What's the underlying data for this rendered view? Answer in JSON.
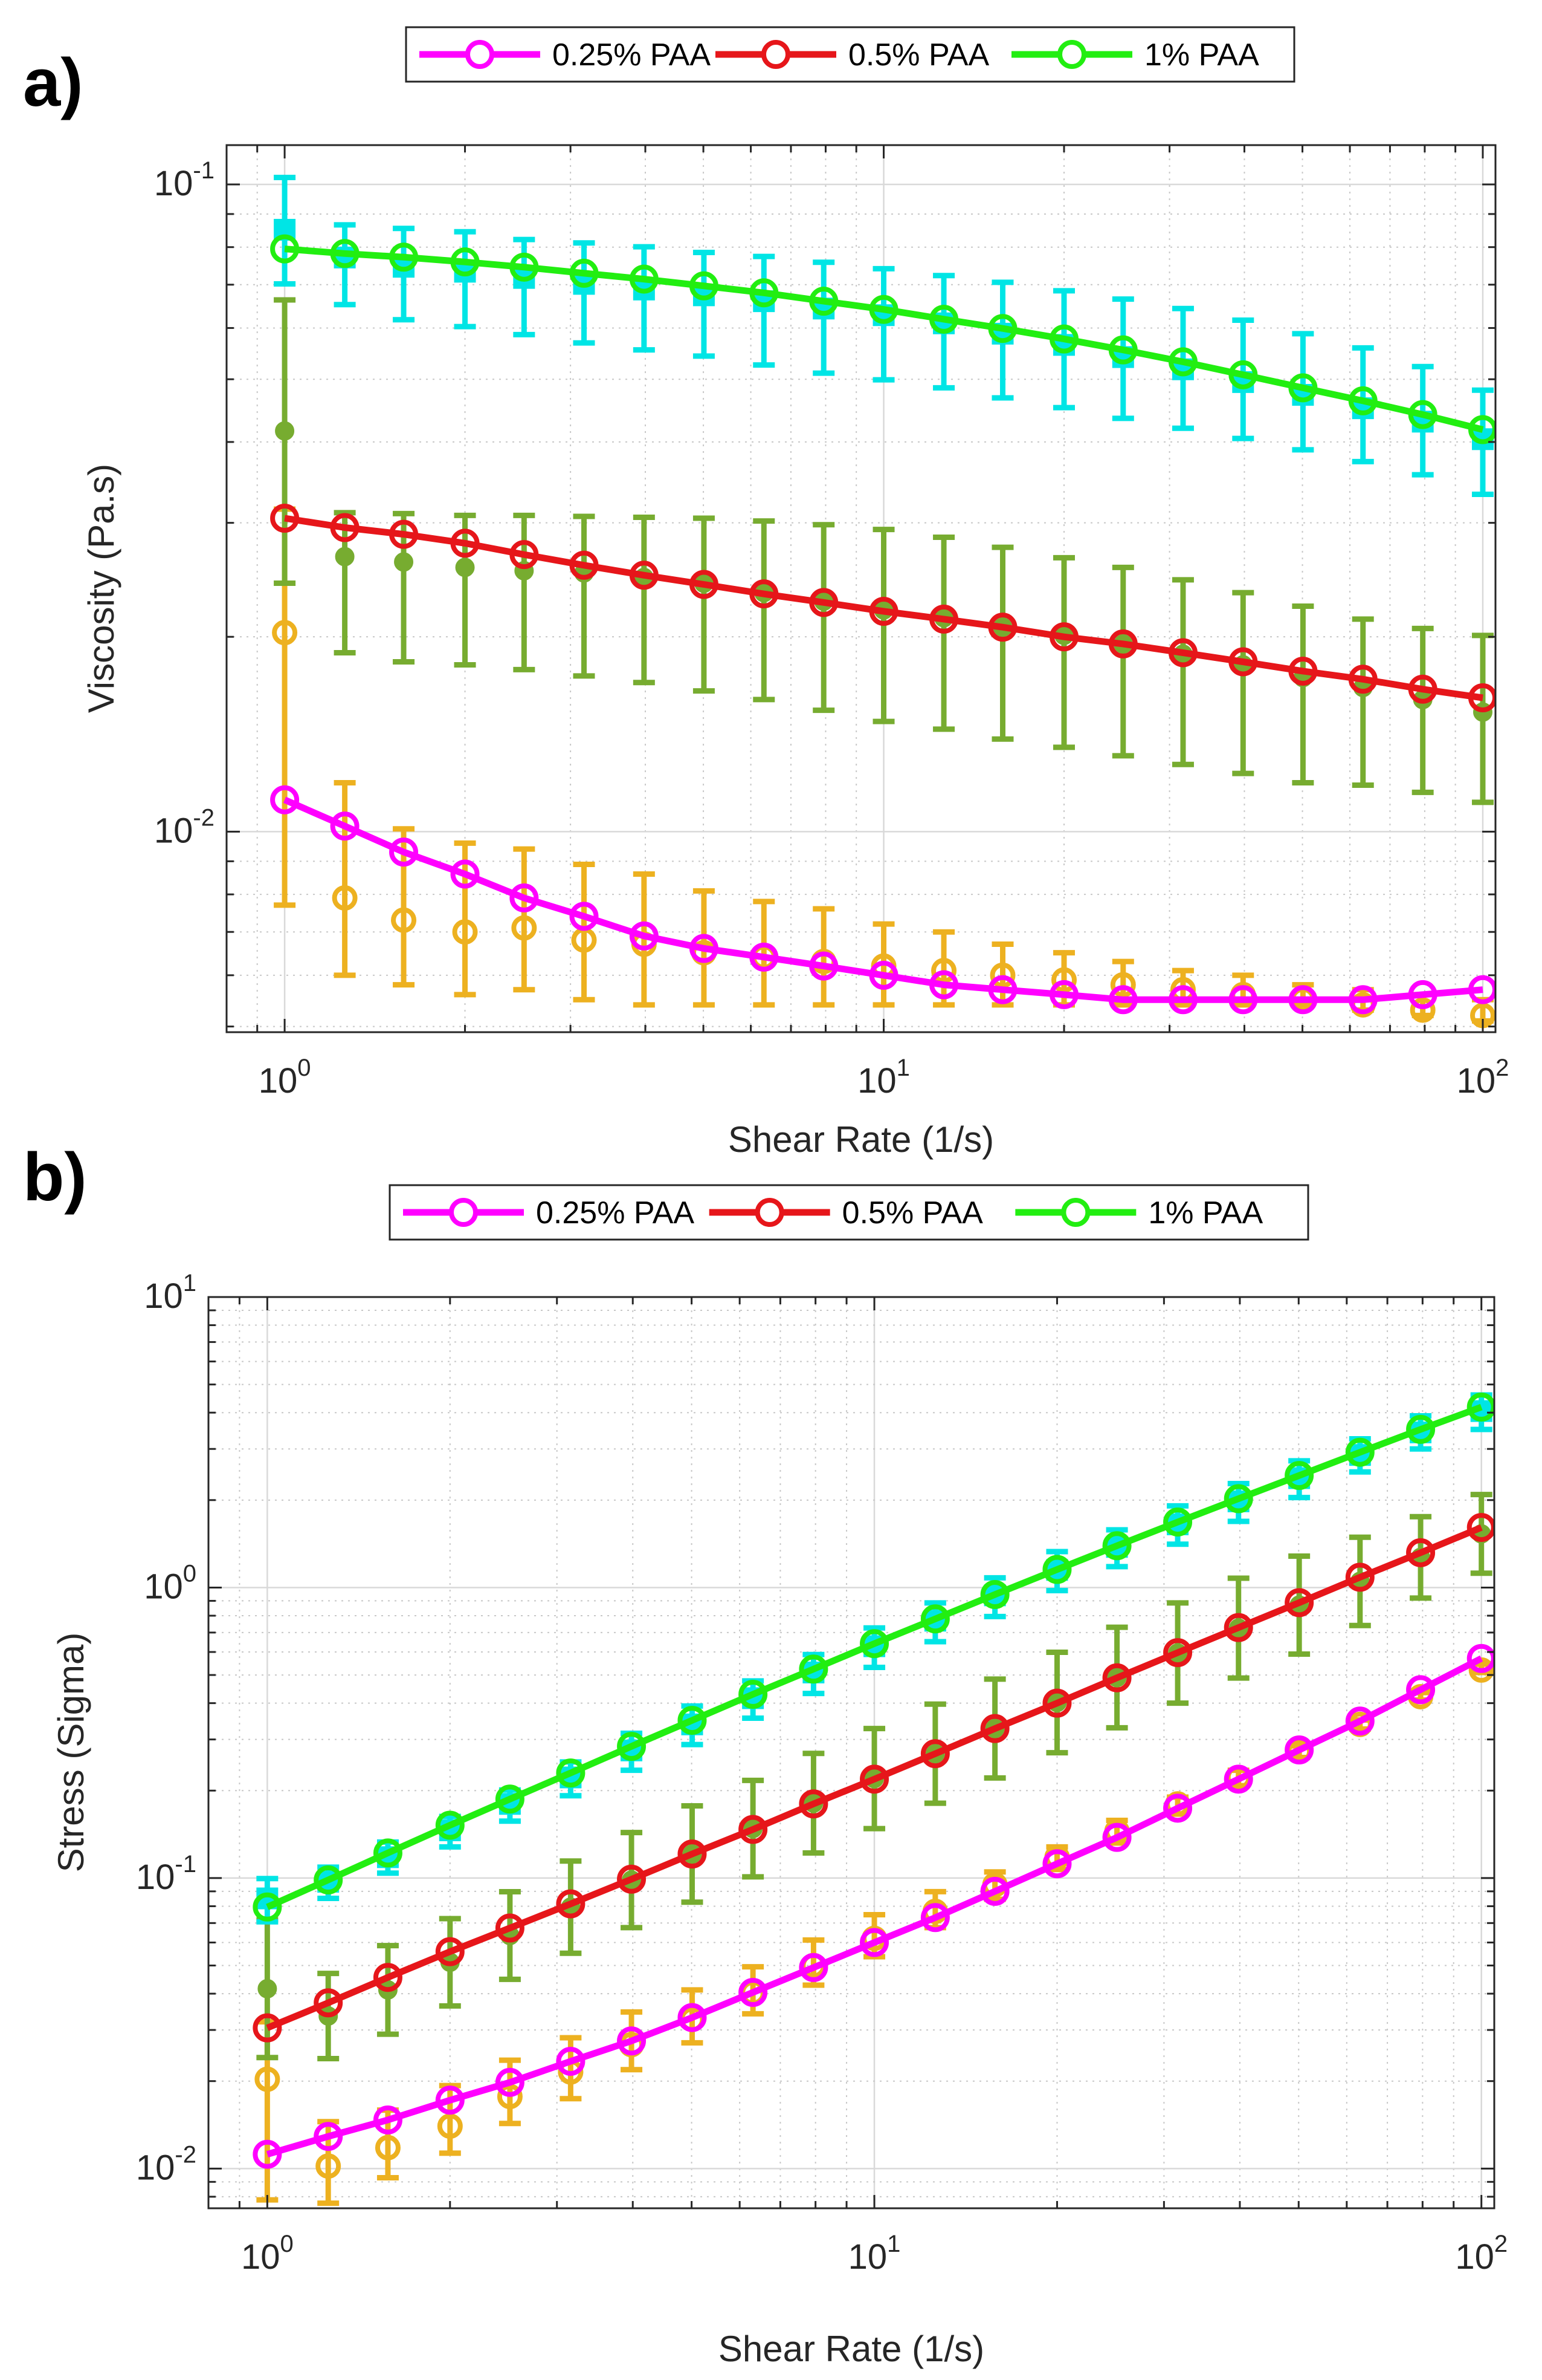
{
  "figure_labels": [
    "a)",
    "b)"
  ],
  "chart_data": [
    {
      "type": "line",
      "panel": "a)",
      "title": "",
      "xlabel": "Shear Rate (1/s)",
      "ylabel": "Viscosity (Pa.s)",
      "xscale": "log",
      "yscale": "log",
      "xlim": [
        0.8,
        105
      ],
      "ylim": [
        0.0049,
        0.115
      ],
      "grid": true,
      "legend_position": "top-center, outside",
      "x_ticks": [
        {
          "base": "10",
          "exp": "0",
          "value": 1
        },
        {
          "base": "10",
          "exp": "1",
          "value": 10
        },
        {
          "base": "10",
          "exp": "2",
          "value": 100
        }
      ],
      "y_ticks": [
        {
          "base": "10",
          "exp": "-2",
          "value": 0.01
        },
        {
          "base": "10",
          "exp": "-1",
          "value": 0.1
        }
      ],
      "x": [
        1,
        1.26,
        1.58,
        2,
        2.51,
        3.16,
        3.98,
        5.01,
        6.31,
        7.94,
        10,
        12.6,
        15.8,
        20,
        25.1,
        31.6,
        39.8,
        50.1,
        63.1,
        79.4,
        100
      ],
      "series": [
        {
          "name": "0.25% PAA",
          "color": "#ff00ff",
          "marker": "circle",
          "line": true,
          "values": [
            0.0112,
            0.0102,
            0.0093,
            0.0086,
            0.0079,
            0.0074,
            0.0069,
            0.0066,
            0.0064,
            0.0062,
            0.006,
            0.0058,
            0.0057,
            0.0056,
            0.0055,
            0.0055,
            0.0055,
            0.0055,
            0.0055,
            0.0056,
            0.0057
          ]
        },
        {
          "name": "0.5% PAA",
          "color": "#e6161a",
          "marker": "circle",
          "line": true,
          "values": [
            0.0305,
            0.0295,
            0.0288,
            0.0279,
            0.0268,
            0.0258,
            0.0249,
            0.0241,
            0.0233,
            0.0226,
            0.0219,
            0.0213,
            0.0207,
            0.02,
            0.0195,
            0.0189,
            0.0183,
            0.0177,
            0.0172,
            0.0166,
            0.0161
          ]
        },
        {
          "name": "1% PAA",
          "color": "#22ee11",
          "marker": "circle",
          "line": true,
          "values": [
            0.0795,
            0.0782,
            0.0772,
            0.0759,
            0.0745,
            0.0729,
            0.0714,
            0.0697,
            0.068,
            0.066,
            0.0641,
            0.0619,
            0.0599,
            0.0577,
            0.0555,
            0.0532,
            0.0508,
            0.0485,
            0.0463,
            0.0441,
            0.0418
          ]
        }
      ],
      "errorbar_series": [
        {
          "of": "0.25% PAA",
          "color": "#edb120",
          "marker": "circle",
          "values": [
            0.0203,
            0.0079,
            0.0073,
            0.007,
            0.0071,
            0.0068,
            0.0067,
            0.0065,
            0.0064,
            0.0063,
            0.0062,
            0.0061,
            0.006,
            0.0059,
            0.0058,
            0.0057,
            0.0056,
            0.0055,
            0.0054,
            0.0053,
            0.0052
          ],
          "lower": [
            0.0077,
            0.006,
            0.0058,
            0.0056,
            0.0057,
            0.0055,
            0.0054,
            0.0054,
            0.0054,
            0.0054,
            0.0054,
            0.0054,
            0.0054,
            0.0054,
            0.0054,
            0.0054,
            0.0054,
            0.0054,
            0.0053,
            0.0052,
            0.0051
          ],
          "upper": [
            0.0315,
            0.0119,
            0.0101,
            0.0096,
            0.0094,
            0.0089,
            0.0086,
            0.0081,
            0.0078,
            0.0076,
            0.0072,
            0.007,
            0.0067,
            0.0065,
            0.0063,
            0.0061,
            0.006,
            0.0058,
            0.0057,
            0.0056,
            0.0055
          ]
        },
        {
          "of": "0.5% PAA",
          "color": "#77ac30",
          "marker": "filled-circle",
          "values": [
            0.0416,
            0.0266,
            0.0261,
            0.0256,
            0.0253,
            0.0251,
            0.0247,
            0.0242,
            0.0234,
            0.0227,
            0.022,
            0.0214,
            0.0207,
            0.0201,
            0.0195,
            0.0188,
            0.0181,
            0.0173,
            0.0167,
            0.016,
            0.0153
          ],
          "lower": [
            0.0242,
            0.0189,
            0.0183,
            0.0181,
            0.0178,
            0.0174,
            0.017,
            0.0165,
            0.016,
            0.0154,
            0.0148,
            0.0144,
            0.0139,
            0.0135,
            0.0131,
            0.0127,
            0.0123,
            0.0119,
            0.0118,
            0.0115,
            0.0111
          ],
          "upper": [
            0.0663,
            0.0311,
            0.031,
            0.0308,
            0.0308,
            0.0307,
            0.0306,
            0.0305,
            0.0302,
            0.0298,
            0.0293,
            0.0285,
            0.0275,
            0.0265,
            0.0256,
            0.0245,
            0.0234,
            0.0223,
            0.0213,
            0.0206,
            0.0201
          ]
        },
        {
          "of": "1% PAA",
          "color": "#00e5e5",
          "marker": "filled-square",
          "values": [
            0.0851,
            0.0771,
            0.0746,
            0.0733,
            0.0717,
            0.0702,
            0.0688,
            0.0674,
            0.066,
            0.0643,
            0.0628,
            0.061,
            0.0588,
            0.0565,
            0.0541,
            0.0518,
            0.0495,
            0.0473,
            0.0451,
            0.043,
            0.0404
          ],
          "lower": [
            0.0702,
            0.0652,
            0.0618,
            0.0603,
            0.0586,
            0.0569,
            0.0555,
            0.0543,
            0.0526,
            0.0511,
            0.0499,
            0.0485,
            0.0468,
            0.0452,
            0.0435,
            0.042,
            0.0405,
            0.0389,
            0.0373,
            0.0356,
            0.0332
          ],
          "upper": [
            0.1025,
            0.0866,
            0.0855,
            0.0845,
            0.0822,
            0.0812,
            0.0801,
            0.0785,
            0.0774,
            0.0758,
            0.0741,
            0.0723,
            0.0706,
            0.0685,
            0.0665,
            0.0643,
            0.0617,
            0.0588,
            0.0559,
            0.0523,
            0.0481
          ]
        }
      ]
    },
    {
      "type": "line",
      "panel": "b)",
      "title": "",
      "xlabel": "Shear Rate (1/s)",
      "ylabel": "Stress (Sigma)",
      "xscale": "log",
      "yscale": "log",
      "xlim": [
        0.8,
        105
      ],
      "ylim": [
        0.0073,
        10
      ],
      "grid": true,
      "legend_position": "top-center, outside",
      "x_ticks": [
        {
          "base": "10",
          "exp": "0",
          "value": 1
        },
        {
          "base": "10",
          "exp": "1",
          "value": 10
        },
        {
          "base": "10",
          "exp": "2",
          "value": 100
        }
      ],
      "y_ticks": [
        {
          "base": "10",
          "exp": "-2",
          "value": 0.01
        },
        {
          "base": "10",
          "exp": "-1",
          "value": 0.1
        },
        {
          "base": "10",
          "exp": "0",
          "value": 1
        },
        {
          "base": "10",
          "exp": "1",
          "value": 10
        }
      ],
      "x": [
        1,
        1.26,
        1.58,
        2,
        2.51,
        3.16,
        3.98,
        5.01,
        6.31,
        7.94,
        10,
        12.6,
        15.8,
        20,
        25.1,
        31.6,
        39.8,
        50.1,
        63.1,
        79.4,
        100
      ],
      "series": [
        {
          "name": "0.25% PAA",
          "color": "#ff00ff",
          "marker": "circle",
          "line": true,
          "values": [
            0.0112,
            0.0129,
            0.0147,
            0.0172,
            0.0198,
            0.0234,
            0.0275,
            0.0331,
            0.0404,
            0.0492,
            0.06,
            0.0731,
            0.09,
            0.112,
            0.138,
            0.174,
            0.219,
            0.276,
            0.347,
            0.445,
            0.57
          ]
        },
        {
          "name": "0.5% PAA",
          "color": "#e6161a",
          "marker": "circle",
          "line": true,
          "values": [
            0.0305,
            0.0372,
            0.0455,
            0.0558,
            0.0673,
            0.0815,
            0.0991,
            0.121,
            0.147,
            0.18,
            0.219,
            0.268,
            0.327,
            0.4,
            0.489,
            0.597,
            0.728,
            0.887,
            1.085,
            1.318,
            1.61
          ]
        },
        {
          "name": "1% PAA",
          "color": "#22ee11",
          "marker": "circle",
          "line": true,
          "values": [
            0.0795,
            0.0985,
            0.122,
            0.152,
            0.187,
            0.23,
            0.284,
            0.349,
            0.429,
            0.524,
            0.641,
            0.78,
            0.946,
            1.154,
            1.393,
            1.681,
            2.022,
            2.43,
            2.922,
            3.502,
            4.18
          ]
        }
      ],
      "errorbar_series": [
        {
          "of": "0.25% PAA",
          "color": "#edb120",
          "marker": "circle",
          "values": [
            0.0203,
            0.0102,
            0.0118,
            0.014,
            0.0177,
            0.0215,
            0.0267,
            0.0326,
            0.0403,
            0.05,
            0.062,
            0.0768,
            0.0948,
            0.118,
            0.145,
            0.18,
            0.222,
            0.273,
            0.338,
            0.421,
            0.52
          ],
          "lower": [
            0.0078,
            0.0076,
            0.0093,
            0.0113,
            0.0143,
            0.0174,
            0.0219,
            0.0271,
            0.0341,
            0.0428,
            0.0536,
            0.0675,
            0.0845,
            0.107,
            0.132,
            0.166,
            0.208,
            0.26,
            0.326,
            0.41,
            0.51
          ],
          "upper": [
            0.032,
            0.0145,
            0.0159,
            0.0193,
            0.0236,
            0.0282,
            0.0346,
            0.0412,
            0.0495,
            0.0612,
            0.0748,
            0.0898,
            0.105,
            0.128,
            0.158,
            0.19,
            0.235,
            0.285,
            0.35,
            0.435,
            0.545
          ]
        },
        {
          "of": "0.5% PAA",
          "color": "#77ac30",
          "marker": "filled-circle",
          "values": [
            0.0416,
            0.0335,
            0.0412,
            0.0513,
            0.0634,
            0.0794,
            0.0984,
            0.121,
            0.148,
            0.181,
            0.22,
            0.268,
            0.327,
            0.402,
            0.49,
            0.595,
            0.725,
            0.87,
            1.05,
            1.27,
            1.53
          ],
          "lower": [
            0.0241,
            0.0239,
            0.029,
            0.0363,
            0.0448,
            0.0551,
            0.0675,
            0.0826,
            0.101,
            0.122,
            0.148,
            0.181,
            0.221,
            0.27,
            0.329,
            0.4,
            0.488,
            0.59,
            0.74,
            0.92,
            1.12
          ]
        },
        {
          "of": "1% PAA",
          "color": "#00e5e5",
          "marker": "filled-square",
          "values": [
            0.0851,
            0.0971,
            0.118,
            0.146,
            0.18,
            0.222,
            0.275,
            0.338,
            0.416,
            0.51,
            0.628,
            0.769,
            0.94,
            1.15,
            1.38,
            1.65,
            1.98,
            2.38,
            2.86,
            3.42,
            4.05
          ],
          "lower": [
            0.0707,
            0.0851,
            0.104,
            0.128,
            0.157,
            0.192,
            0.235,
            0.288,
            0.355,
            0.432,
            0.531,
            0.651,
            0.795,
            0.976,
            1.18,
            1.41,
            1.69,
            2.04,
            2.5,
            3.0,
            3.5
          ],
          "upper": [
            0.0996,
            0.109,
            0.133,
            0.163,
            0.201,
            0.251,
            0.315,
            0.391,
            0.477,
            0.588,
            0.726,
            0.885,
            1.08,
            1.33,
            1.58,
            1.91,
            2.28,
            2.73,
            3.25,
            3.9,
            4.6
          ]
        }
      ]
    }
  ]
}
